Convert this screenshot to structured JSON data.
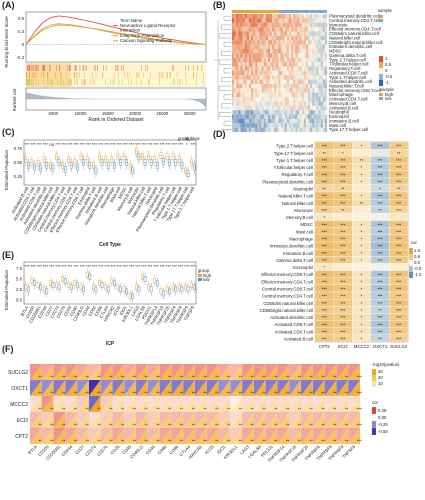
{
  "panels": {
    "a": "(A)",
    "b": "(B)",
    "c": "(C)",
    "d": "(D)",
    "e": "(E)",
    "f": "(F)"
  },
  "chart_data": [
    {
      "type": "line",
      "panel": "A",
      "ylabel": "Running Enrichment Score",
      "xlabel": "Rank in Ordered Dataset",
      "ylabel2": "Ranked List",
      "x_ticks": [
        5000,
        10000,
        15000,
        20000,
        25000,
        30000
      ],
      "y_ticks": [
        -0.3,
        0.0,
        0.3,
        0.6
      ],
      "ylim": [
        -0.4,
        0.75
      ],
      "legend_title": "Term Name",
      "series": [
        {
          "name": "Neuroactive Ligand Receptor Interaction",
          "color": "#e8504f",
          "x": [
            0,
            1500,
            3000,
            4500,
            6000,
            8000,
            10000,
            13000,
            16000,
            20000,
            25000,
            30000,
            33000
          ],
          "y": [
            0,
            0.28,
            0.5,
            0.62,
            0.66,
            0.63,
            0.58,
            0.5,
            0.4,
            0.28,
            0.15,
            0.05,
            0
          ]
        },
        {
          "name": "Long Term Potentiation",
          "color": "#f39a3b",
          "x": [
            0,
            1500,
            3000,
            4500,
            6000,
            8000,
            10000,
            13000,
            16000,
            20000,
            25000,
            30000,
            33000
          ],
          "y": [
            0,
            0.2,
            0.36,
            0.45,
            0.48,
            0.46,
            0.42,
            0.35,
            0.27,
            0.18,
            0.08,
            0.02,
            0
          ]
        },
        {
          "name": "Calcium Signaling Pathway",
          "color": "#c9b23a",
          "x": [
            0,
            1500,
            3000,
            4500,
            6000,
            8000,
            10000,
            13000,
            16000,
            20000,
            25000,
            30000,
            33000
          ],
          "y": [
            0,
            0.18,
            0.33,
            0.41,
            0.45,
            0.44,
            0.41,
            0.36,
            0.29,
            0.2,
            0.1,
            0.03,
            0
          ]
        }
      ]
    },
    {
      "type": "heatmap",
      "panel": "B",
      "rows": [
        "Plasmacytoid.dendritic.cell",
        "Central.memory.CD4.T.cell",
        "Monocyte",
        "Effector.memory.CD4.T.cell",
        "CD56dim.natural.killer.cell",
        "Natural.killer.cell",
        "CD56bright.natural.killer.cell",
        "Immature.dendritic.cell",
        "MDSC",
        "Gamma.delta.T.cell",
        "Type.2.T.helper.cell",
        "T.follicular.helper.cell",
        "Regulatory.T.cell",
        "Activated.CD8.T.cell",
        "Type.1.T.helper.cell",
        "Activated.dendritic.cell",
        "Natural.killer.T.cell",
        "Effector.memory.CD8.T.cell",
        "Macrophage",
        "Activated.CD4.T.cell",
        "Memory.B.cell",
        "Activated.B.cell",
        "Neutrophil",
        "Eosinophil",
        "Immature.B.cell",
        "Mast.cell",
        "Type.17.T.helper.cell"
      ],
      "row_level": [
        0.7,
        0.72,
        0.68,
        0.65,
        0.6,
        0.62,
        0.58,
        0.55,
        0.57,
        0.5,
        0.45,
        0.42,
        0.4,
        0.35,
        0.3,
        0.28,
        0.25,
        0.2,
        0.22,
        0.1,
        0.05,
        0.0,
        -0.45,
        -0.5,
        -0.55,
        -0.5,
        -0.4
      ],
      "legend_title": "sample",
      "legend_values": [
        "1",
        "0.5",
        "0",
        "-0.5",
        "-1"
      ],
      "legend2_title": "sample",
      "legend2_labels": [
        "high",
        "low"
      ]
    },
    {
      "type": "box",
      "panel": "C",
      "ylabel": "Estimated Proportion",
      "xlabel": "Cell Type",
      "y_ticks": [
        0.25,
        0.5,
        0.75
      ],
      "ylim": [
        0.1,
        0.9
      ],
      "legend_title": "group",
      "legend_labels": [
        "high",
        "low"
      ],
      "categories": [
        "Activated.B.cell",
        "Activated.CD4.T.cell",
        "Activated.CD8.T.cell",
        "Activated.dendritic.cell",
        "CD56bright.natural.killer.cell",
        "CD56dim.natural.killer.cell",
        "Central.memory.CD4.T.cell",
        "Central.memory.CD8.T.cell",
        "Effector.memory.CD4.T.cell",
        "Effector.memory.CD8.T.cell",
        "Eosinophil",
        "Gamma.delta.T.cell",
        "Immature.B.cell",
        "Immature.dendritic.cell",
        "Macrophage",
        "Mast.cell",
        "MDSC",
        "Memory.B.cell",
        "Monocyte",
        "Natural.killer.cell",
        "Natural.killer.T.cell",
        "Neutrophil",
        "Plasmacytoid.dendritic.cell",
        "Regulatory.T.cell",
        "T.follicular.helper.cell",
        "Type.1.T.helper.cell",
        "Type.17.T.helper.cell",
        "Type.2.T.helper.cell"
      ],
      "high": [
        0.55,
        0.5,
        0.48,
        0.55,
        0.45,
        0.6,
        0.45,
        0.55,
        0.5,
        0.6,
        0.55,
        0.45,
        0.6,
        0.55,
        0.55,
        0.6,
        0.6,
        0.42,
        0.7,
        0.6,
        0.6,
        0.55,
        0.62,
        0.6,
        0.6,
        0.55,
        0.35,
        0.5
      ],
      "low": [
        0.45,
        0.42,
        0.4,
        0.45,
        0.4,
        0.5,
        0.38,
        0.45,
        0.42,
        0.5,
        0.45,
        0.35,
        0.5,
        0.45,
        0.45,
        0.5,
        0.5,
        0.35,
        0.6,
        0.5,
        0.5,
        0.45,
        0.52,
        0.5,
        0.5,
        0.45,
        0.3,
        0.42
      ],
      "signif": [
        "***",
        "***",
        "***",
        "***",
        "ns",
        "***",
        "***",
        "***",
        "***",
        "***",
        "***",
        "***",
        "***",
        "***",
        "***",
        "***",
        "***",
        "***",
        "***",
        "***",
        "***",
        "***",
        "***",
        "***",
        "***",
        "***",
        "*",
        "***"
      ]
    },
    {
      "type": "heatmap",
      "panel": "D",
      "columns": [
        "CPT2",
        "ECI2",
        "MCCC2",
        "OXCT1",
        "SUCLG2"
      ],
      "rows": [
        "Type.2.T.helper.cell",
        "Type.17.T.helper.cell",
        "Type.1.T.helper.cell",
        "T.follicular.helper.cell",
        "Regulatory.T.cell",
        "Plasmacytoid.dendritic.cell",
        "Neutrophil",
        "Natural.killer.T.cell",
        "Natural.killer.cell",
        "Monocyte",
        "Memory.B.cell",
        "MDSC",
        "Mast.cell",
        "Macrophage",
        "Immature.dendritic.cell",
        "Immature.B.cell",
        "Gamma.delta.T.cell",
        "Eosinophil",
        "Effector.memory.CD8.T.cell",
        "Effector.memory.CD4.T.cell",
        "Central.memory.CD8.T.cell",
        "Central.memory.CD4.T.cell",
        "CD56dim.natural.killer.cell",
        "CD56bright.natural.killer.cell",
        "Activated.dendritic.cell",
        "Activated.CD8.T.cell",
        "Activated.CD4.T.cell",
        "Activated.B.cell"
      ],
      "values": [
        [
          0.45,
          0.4,
          0.2,
          -0.35,
          0.4
        ],
        [
          0.3,
          0.25,
          0.1,
          -0.1,
          0.3
        ],
        [
          0.5,
          0.45,
          0.25,
          -0.3,
          0.45
        ],
        [
          0.45,
          0.4,
          0.2,
          -0.3,
          0.4
        ],
        [
          0.5,
          0.45,
          0.2,
          -0.35,
          0.45
        ],
        [
          0.45,
          0.4,
          0.15,
          -0.3,
          0.4
        ],
        [
          0.3,
          0.3,
          0.1,
          -0.2,
          0.3
        ],
        [
          0.5,
          0.45,
          0.2,
          -0.35,
          0.45
        ],
        [
          0.5,
          0.45,
          0.25,
          -0.3,
          0.45
        ],
        [
          0.35,
          0.3,
          0.1,
          -0.25,
          0.3
        ],
        [
          0.15,
          0.12,
          0.05,
          -0.05,
          0.15
        ],
        [
          0.5,
          0.45,
          0.2,
          -0.35,
          0.45
        ],
        [
          0.45,
          0.4,
          0.2,
          -0.3,
          0.4
        ],
        [
          0.5,
          0.45,
          0.2,
          -0.35,
          0.45
        ],
        [
          0.5,
          0.45,
          0.2,
          -0.4,
          0.45
        ],
        [
          0.5,
          0.45,
          0.2,
          -0.35,
          0.45
        ],
        [
          0.45,
          0.4,
          0.15,
          -0.3,
          0.4
        ],
        [
          0.15,
          0.1,
          0.05,
          -0.05,
          0.1
        ],
        [
          0.5,
          0.45,
          0.2,
          -0.35,
          0.45
        ],
        [
          0.45,
          0.4,
          0.2,
          -0.3,
          0.4
        ],
        [
          0.5,
          0.45,
          0.2,
          -0.35,
          0.45
        ],
        [
          0.45,
          0.4,
          0.2,
          -0.3,
          0.4
        ],
        [
          0.45,
          0.4,
          0.2,
          -0.3,
          0.45
        ],
        [
          0.4,
          0.35,
          0.15,
          -0.25,
          0.4
        ],
        [
          0.45,
          0.4,
          0.2,
          -0.3,
          0.4
        ],
        [
          0.5,
          0.45,
          0.2,
          -0.35,
          0.45
        ],
        [
          0.45,
          0.4,
          0.2,
          -0.3,
          0.4
        ],
        [
          0.4,
          0.35,
          0.15,
          -0.25,
          0.35
        ]
      ],
      "stars": [
        [
          "***",
          "***",
          "*",
          "***",
          "***"
        ],
        [
          "**",
          "*",
          "",
          "",
          "**"
        ],
        [
          "***",
          "***",
          "**",
          "***",
          "***"
        ],
        [
          "***",
          "***",
          "*",
          "***",
          "***"
        ],
        [
          "***",
          "***",
          "*",
          "***",
          "***"
        ],
        [
          "***",
          "***",
          "*",
          "***",
          "***"
        ],
        [
          "**",
          "**",
          "",
          "*",
          "**"
        ],
        [
          "***",
          "***",
          "*",
          "***",
          "***"
        ],
        [
          "***",
          "***",
          "**",
          "***",
          "***"
        ],
        [
          "***",
          "**",
          "",
          "**",
          "***"
        ],
        [
          "*",
          "",
          "",
          "",
          ""
        ],
        [
          "***",
          "***",
          "*",
          "***",
          "***"
        ],
        [
          "***",
          "***",
          "*",
          "***",
          "***"
        ],
        [
          "***",
          "***",
          "*",
          "***",
          "***"
        ],
        [
          "***",
          "***",
          "*",
          "***",
          "***"
        ],
        [
          "***",
          "***",
          "*",
          "***",
          "***"
        ],
        [
          "***",
          "***",
          "*",
          "***",
          "***"
        ],
        [
          "*",
          "",
          "",
          "",
          ""
        ],
        [
          "***",
          "***",
          "*",
          "***",
          "***"
        ],
        [
          "***",
          "***",
          "*",
          "***",
          "***"
        ],
        [
          "***",
          "***",
          "*",
          "***",
          "***"
        ],
        [
          "***",
          "***",
          "*",
          "***",
          "***"
        ],
        [
          "***",
          "***",
          "*",
          "***",
          "***"
        ],
        [
          "***",
          "***",
          "*",
          "**",
          "***"
        ],
        [
          "***",
          "***",
          "*",
          "***",
          "***"
        ],
        [
          "***",
          "***",
          "*",
          "***",
          "***"
        ],
        [
          "***",
          "***",
          "*",
          "***",
          "***"
        ],
        [
          "***",
          "***",
          "*",
          "**",
          "***"
        ]
      ],
      "legend_title": "cor",
      "legend_values": [
        "1.0",
        "0.5",
        "0.0",
        "-0.5",
        "-1.0"
      ]
    },
    {
      "type": "box",
      "panel": "E",
      "ylabel": "Estimated Proportion",
      "xlabel": "ICP",
      "y_ticks": [
        0.0,
        2.5,
        5.0,
        7.5
      ],
      "ylim": [
        -1,
        9
      ],
      "legend_title": "group",
      "legend_labels": [
        "high",
        "low"
      ],
      "categories": [
        "BTLA",
        "CD200",
        "CD200R1",
        "CD244",
        "CD27",
        "CD274",
        "CD276",
        "CD28",
        "CD40",
        "CD40LG",
        "CD44",
        "CD80",
        "CD86",
        "CTLA4",
        "HAVCR2",
        "ICOS",
        "IDO1",
        "KIR3DL1",
        "LAG3",
        "LGALS9",
        "PDCD1",
        "TNFRSF14",
        "TNFRSF18",
        "TNFRSF25",
        "TNFRSF4",
        "TNFRSF8",
        "TNFRSF9",
        "TNFSF9"
      ],
      "high": [
        3,
        4.5,
        3.5,
        2.5,
        4,
        3.5,
        5,
        3.5,
        4,
        3,
        6,
        3,
        4,
        3,
        4.5,
        3,
        2.5,
        1,
        3,
        5.5,
        3,
        4.5,
        2,
        2.5,
        3,
        3,
        3,
        3.5
      ],
      "low": [
        2.5,
        4,
        3,
        2,
        3.5,
        3,
        4.5,
        3,
        3.5,
        2.5,
        5.5,
        2.5,
        3.5,
        2.5,
        4,
        2.5,
        2,
        0.8,
        2.5,
        5,
        2.5,
        4,
        1.5,
        2,
        2.5,
        2.5,
        2.5,
        3
      ],
      "signif": [
        "***",
        "***",
        "***",
        "***",
        "***",
        "***",
        "***",
        "***",
        "***",
        "***",
        "***",
        "***",
        "***",
        "***",
        "***",
        "***",
        "***",
        "***",
        "***",
        "***",
        "***",
        "***",
        "***",
        "***",
        "***",
        "***",
        "***",
        "***"
      ]
    },
    {
      "type": "heatmap",
      "panel": "F",
      "rows": [
        "SUCLG2",
        "OXCT1",
        "MCCC2",
        "ECI2",
        "CPT2"
      ],
      "columns": [
        "BTLA",
        "CD200",
        "CD200R1",
        "CD244",
        "CD27",
        "CD274",
        "CD276",
        "CD28",
        "CD40",
        "CD40LG",
        "CD44",
        "CD80",
        "CD86",
        "CTLA4",
        "HAVCR2",
        "ICOS",
        "IDO1",
        "KIR3DL1",
        "LAG3",
        "LGALS9",
        "PDCD1",
        "TNFRSF14",
        "TNFRSF18",
        "TNFRSF25",
        "TNFRSF4",
        "TNFRSF8",
        "TNFRSF9",
        "TNFSF9"
      ],
      "values": [
        [
          0.3,
          0.25,
          0.3,
          0.3,
          0.25,
          0.2,
          0.3,
          0.3,
          0.25,
          0.3,
          0.25,
          0.3,
          0.3,
          0.3,
          0.3,
          0.3,
          0.25,
          0.2,
          0.3,
          0.3,
          0.3,
          0.3,
          0.25,
          0.3,
          0.3,
          0.3,
          0.3,
          0.3
        ],
        [
          -0.35,
          -0.3,
          -0.35,
          -0.35,
          -0.3,
          -0.55,
          -0.3,
          -0.35,
          -0.3,
          -0.35,
          -0.3,
          -0.35,
          -0.35,
          -0.35,
          -0.35,
          -0.35,
          -0.3,
          -0.3,
          -0.35,
          -0.35,
          -0.35,
          -0.35,
          -0.3,
          -0.35,
          -0.35,
          -0.35,
          -0.35,
          -0.35
        ],
        [
          0.1,
          0.3,
          0.1,
          0.1,
          0.15,
          -0.4,
          0.15,
          0.1,
          0.1,
          0.1,
          0.1,
          0.1,
          0.1,
          0.1,
          0.1,
          0.1,
          0.1,
          0.05,
          0.1,
          0.1,
          0.1,
          0.1,
          0.1,
          0.1,
          0.1,
          0.1,
          0.1,
          0.1
        ],
        [
          0.2,
          0.15,
          0.3,
          0.2,
          0.15,
          0.1,
          0.15,
          0.2,
          0.15,
          0.2,
          0.15,
          0.2,
          0.2,
          0.2,
          0.2,
          0.2,
          0.15,
          0.1,
          0.2,
          0.2,
          0.2,
          0.2,
          0.15,
          0.2,
          0.2,
          0.2,
          0.2,
          0.2
        ],
        [
          0.25,
          0.2,
          0.3,
          0.25,
          0.2,
          0.15,
          0.2,
          0.25,
          0.2,
          0.25,
          0.2,
          0.25,
          0.25,
          0.25,
          0.25,
          0.25,
          0.2,
          0.15,
          0.25,
          0.25,
          0.25,
          0.25,
          0.2,
          0.25,
          0.25,
          0.25,
          0.25,
          0.25
        ]
      ],
      "legend1_title": "-log10(pvalue)",
      "legend1_values": [
        "30",
        "20",
        "10"
      ],
      "legend2_title": "cor",
      "legend2_values": [
        "0.25",
        "0.00",
        "-0.25",
        "-0.50"
      ]
    }
  ]
}
